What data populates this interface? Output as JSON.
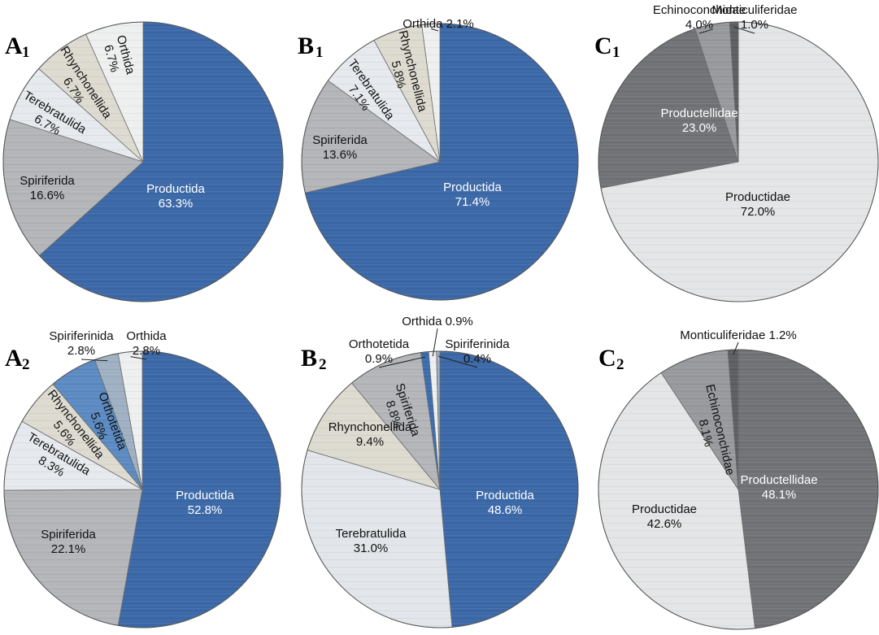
{
  "chart_data": [
    {
      "type": "pie",
      "panel": "A1",
      "labels": [
        "Productida",
        "Spiriferida",
        "Terebratulida",
        "Rhynchonellida",
        "Orthida"
      ],
      "values": [
        63.3,
        16.6,
        6.7,
        6.7,
        6.7
      ],
      "value_labels": [
        "63.3%",
        "16.6%",
        "6.7%",
        "6.7%",
        "6.7%"
      ],
      "colors": [
        "#3b68a7",
        "#b3b5b9",
        "#e6e9ed",
        "#dddbd0",
        "#eef0f0"
      ],
      "text_colors": [
        "#ffffff",
        "#111111",
        "#111111",
        "#111111",
        "#111111"
      ]
    },
    {
      "type": "pie",
      "panel": "B1",
      "labels": [
        "Productida",
        "Spiriferida",
        "Terebratulida",
        "Rhynchonellida",
        "Orthida"
      ],
      "values": [
        71.4,
        13.6,
        7.1,
        5.8,
        2.1
      ],
      "value_labels": [
        "71.4%",
        "13.6%",
        "7.1%",
        "5.8%",
        "2.1%"
      ],
      "colors": [
        "#3b68a7",
        "#b3b5b9",
        "#e6e9ed",
        "#dddbd0",
        "#eef0f0"
      ],
      "text_colors": [
        "#ffffff",
        "#111111",
        "#111111",
        "#111111",
        "#111111"
      ]
    },
    {
      "type": "pie",
      "panel": "C1",
      "labels": [
        "Productidae",
        "Productellidae",
        "Echinoconchidae",
        "Monticuliferidae"
      ],
      "values": [
        72.0,
        23.0,
        4.0,
        1.0
      ],
      "value_labels": [
        "72.0%",
        "23.0%",
        "4.0%",
        "1.0%"
      ],
      "colors": [
        "#e4e5e6",
        "#707275",
        "#97999c",
        "#5c5e61"
      ],
      "text_colors": [
        "#111111",
        "#ffffff",
        "#111111",
        "#111111"
      ]
    },
    {
      "type": "pie",
      "panel": "A2",
      "labels": [
        "Productida",
        "Spiriferida",
        "Terebratulida",
        "Rhynchonellida",
        "Orthotetida",
        "Spiriferinida",
        "Orthida"
      ],
      "values": [
        52.8,
        22.1,
        8.3,
        5.6,
        5.6,
        2.8,
        2.8
      ],
      "value_labels": [
        "52.8%",
        "22.1%",
        "8.3%",
        "5.6%",
        "5.6%",
        "2.8%",
        "2.8%"
      ],
      "colors": [
        "#3b68a7",
        "#b3b5b9",
        "#e6e9ed",
        "#dddbd0",
        "#5b8ac2",
        "#9eb0c2",
        "#eef0f0"
      ],
      "text_colors": [
        "#ffffff",
        "#111111",
        "#111111",
        "#111111",
        "#111111",
        "#111111",
        "#111111"
      ]
    },
    {
      "type": "pie",
      "panel": "B2",
      "labels": [
        "Productida",
        "Terebratulida",
        "Rhynchonellida",
        "Spiriferida",
        "Orthotetida",
        "Orthida",
        "Spiriferinida"
      ],
      "values": [
        48.6,
        31.0,
        9.4,
        8.8,
        0.9,
        0.9,
        0.4
      ],
      "value_labels": [
        "48.6%",
        "31.0%",
        "9.4%",
        "8.8%",
        "0.9%",
        "0.9%",
        "0.4%"
      ],
      "colors": [
        "#3b68a7",
        "#e2e6ea",
        "#dddbd0",
        "#b3b5b9",
        "#3a6db0",
        "#eef0f0",
        "#9eb0c2"
      ],
      "text_colors": [
        "#ffffff",
        "#111111",
        "#111111",
        "#111111",
        "#111111",
        "#111111",
        "#111111"
      ]
    },
    {
      "type": "pie",
      "panel": "C2",
      "labels": [
        "Productellidae",
        "Productidae",
        "Echinoconchidae",
        "Monticuliferidae"
      ],
      "values": [
        48.1,
        42.6,
        8.1,
        1.2
      ],
      "value_labels": [
        "48.1%",
        "42.6%",
        "8.1%",
        "1.2%"
      ],
      "colors": [
        "#707275",
        "#e4e5e6",
        "#97999c",
        "#5c5e61"
      ],
      "text_colors": [
        "#ffffff",
        "#111111",
        "#111111",
        "#111111"
      ]
    }
  ],
  "panels": {
    "A1": {
      "letter": "A",
      "sub": "1"
    },
    "B1": {
      "letter": "B",
      "sub": "1"
    },
    "C1": {
      "letter": "C",
      "sub": "1"
    },
    "A2": {
      "letter": "A",
      "sub": "2"
    },
    "B2": {
      "letter": "B",
      "sub": "2"
    },
    "C2": {
      "letter": "C",
      "sub": "2"
    }
  }
}
